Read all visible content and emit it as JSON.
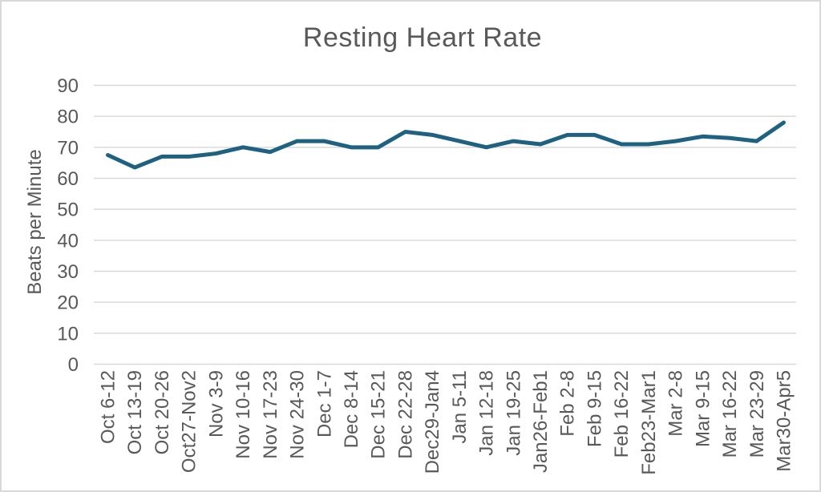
{
  "frame": {
    "background": "#ffffff",
    "border_color": "#d8d8d8"
  },
  "chart_data": {
    "type": "line",
    "title": "Resting Heart Rate",
    "ylabel": "Beats per Minute",
    "xlabel": "",
    "categories": [
      "Oct 6-12",
      "Oct 13-19",
      "Oct 20-26",
      "Oct27-Nov2",
      "Nov 3-9",
      "Nov 10-16",
      "Nov 17-23",
      "Nov 24-30",
      "Dec 1-7",
      "Dec 8-14",
      "Dec 15-21",
      "Dec 22-28",
      "Dec29-Jan4",
      "Jan 5-11",
      "Jan 12-18",
      "Jan 19-25",
      "Jan26-Feb1",
      "Feb 2-8",
      "Feb 9-15",
      "Feb 16-22",
      "Feb23-Mar1",
      "Mar 2-8",
      "Mar 9-15",
      "Mar 16-22",
      "Mar 23-29",
      "Mar30-Apr5"
    ],
    "series": [
      {
        "name": "Resting Heart Rate",
        "color": "#1e6181",
        "values": [
          67.5,
          63.5,
          67,
          67,
          68,
          70,
          68.5,
          72,
          72,
          70,
          70,
          75,
          74,
          72,
          70,
          72,
          71,
          74,
          74,
          71,
          71,
          72,
          73.5,
          73,
          72,
          78
        ]
      }
    ],
    "ylim": [
      0,
      90
    ],
    "yticks": [
      0,
      10,
      20,
      30,
      40,
      50,
      60,
      70,
      80,
      90
    ],
    "grid": "horizontal",
    "gridline_color": "#d9d9d9",
    "text_color": "#595959",
    "legend_position": "none",
    "x_label_rotation": -90
  }
}
